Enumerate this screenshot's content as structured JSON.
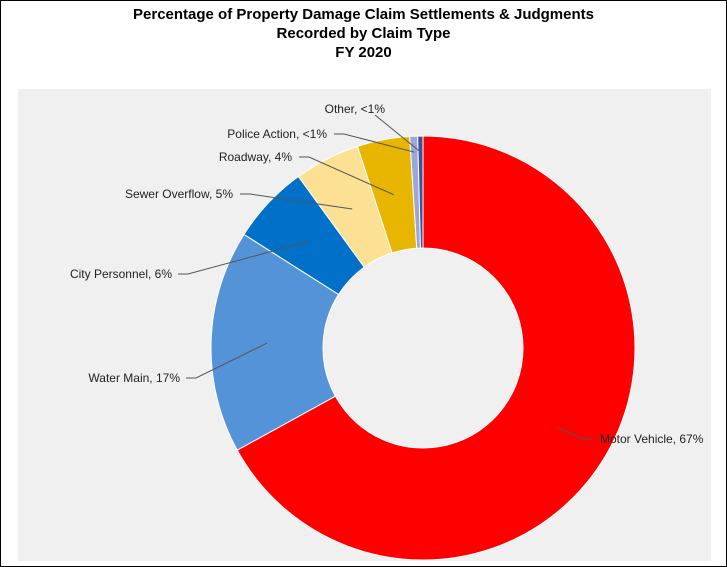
{
  "chart_data": {
    "type": "pie",
    "donut": true,
    "title_lines": [
      "Percentage of Property Damage Claim Settlements & Judgments",
      "Recorded by Claim Type",
      "FY 2020"
    ],
    "slices": [
      {
        "label": "Motor Vehicle, 67%",
        "category": "Motor Vehicle",
        "value": 67,
        "color": "#ff0000"
      },
      {
        "label": "Water Main, 17%",
        "category": "Water Main",
        "value": 17,
        "color": "#5593d9"
      },
      {
        "label": "City Personnel, 6%",
        "category": "City Personnel",
        "value": 6,
        "color": "#0070c8"
      },
      {
        "label": "Sewer Overflow, 5%",
        "category": "Sewer Overflow",
        "value": 5,
        "color": "#fce093"
      },
      {
        "label": "Roadway, 4%",
        "category": "Roadway",
        "value": 4,
        "color": "#e8b500"
      },
      {
        "label": "Police Action, <1%",
        "category": "Police Action",
        "value": 0.6,
        "color": "#9aa7d8"
      },
      {
        "label": "Other, <1%",
        "category": "Other",
        "value": 0.4,
        "color": "#3d4f9e"
      }
    ],
    "legend": "none",
    "colors": {
      "plot_background": "#f0f0f0",
      "leader_line": "#555555"
    }
  }
}
